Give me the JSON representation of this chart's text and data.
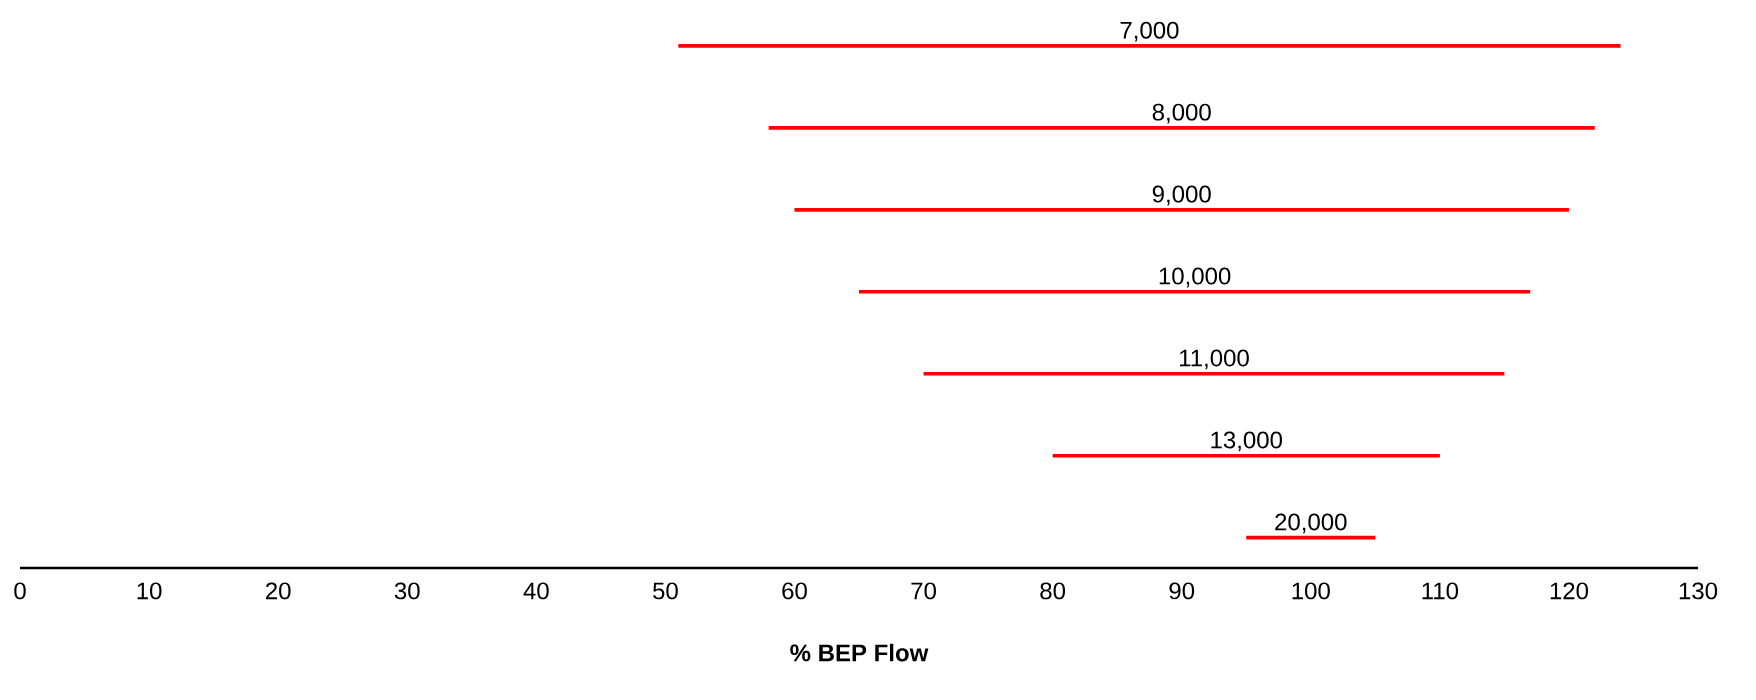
{
  "chart_data": {
    "type": "bar",
    "orientation": "horizontal",
    "xlabel": "% BEP Flow",
    "categories": [
      "7,000",
      "8,000",
      "9,000",
      "10,000",
      "11,000",
      "13,000",
      "20,000"
    ],
    "base": [
      51,
      58,
      60,
      65,
      70,
      80,
      95
    ],
    "values": [
      73,
      64,
      60,
      52,
      45,
      30,
      10
    ],
    "color": "#ff0000",
    "xlim": [
      0,
      130
    ],
    "xticks": [
      0,
      10,
      20,
      30,
      40,
      50,
      60,
      70,
      80,
      90,
      100,
      110,
      120,
      130
    ]
  }
}
